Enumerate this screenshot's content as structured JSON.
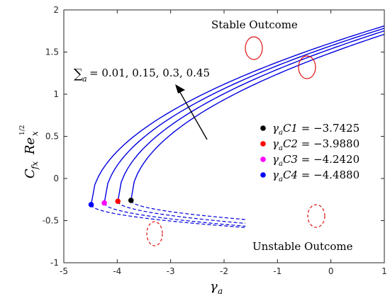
{
  "chart_data": {
    "type": "line",
    "xlabel": "γ",
    "xlabel_sub": "a",
    "ylabel": "C",
    "ylabel_sub": "fx",
    "ylabel_rest": "Re",
    "ylabel_sup": "1/2",
    "ylabel_sup_sub": "x",
    "xlim": [
      -5,
      1
    ],
    "ylim": [
      -1,
      2
    ],
    "xticks": [
      "-5",
      "-4",
      "-3",
      "-2",
      "-1",
      "0",
      "1"
    ],
    "yticks": [
      "-1",
      "-0.5",
      "0",
      "0.5",
      "1",
      "1.5",
      "2"
    ],
    "grid": false,
    "series": [
      {
        "color": "#0000e0",
        "xc": -3.7425,
        "yc": -0.26,
        "k_upper": 0.905,
        "k_lower": 0.155,
        "x_end_upper": 1,
        "x_end_lower": -1.6
      },
      {
        "color": "#0000e0",
        "xc": -3.988,
        "yc": -0.27,
        "k_upper": 0.905,
        "k_lower": 0.17,
        "x_end_upper": 1,
        "x_end_lower": -1.6
      },
      {
        "color": "#0000e0",
        "xc": -4.242,
        "yc": -0.29,
        "k_upper": 0.905,
        "k_lower": 0.17,
        "x_end_upper": 1,
        "x_end_lower": -1.6
      },
      {
        "color": "#0000e0",
        "xc": -4.488,
        "yc": -0.31,
        "k_upper": 0.905,
        "k_lower": 0.16,
        "x_end_upper": 1,
        "x_end_lower": -1.6
      }
    ],
    "critical_points": [
      {
        "sub": "C1",
        "value": "−3.7425",
        "x": -3.7425,
        "y": -0.26,
        "color": "#000000"
      },
      {
        "sub": "C2",
        "value": "−3.9880",
        "x": -3.988,
        "y": -0.27,
        "color": "#ff0000"
      },
      {
        "sub": "C3",
        "value": "−4.2420",
        "x": -4.242,
        "y": -0.29,
        "color": "#ff00ff"
      },
      {
        "sub": "C4",
        "value": "−4.4880",
        "x": -4.488,
        "y": -0.31,
        "color": "#0000ff"
      }
    ],
    "annotations": {
      "stable": "Stable Outcome",
      "unstable": "Unstable Outcome",
      "sigma_values": "= 0.01, 0.15, 0.3, 0.45",
      "sigma_sub": "a"
    },
    "legend_position": "right",
    "marker_colors": {
      "stable_ellipse": "#e01010",
      "curves": "#0000e0"
    }
  }
}
